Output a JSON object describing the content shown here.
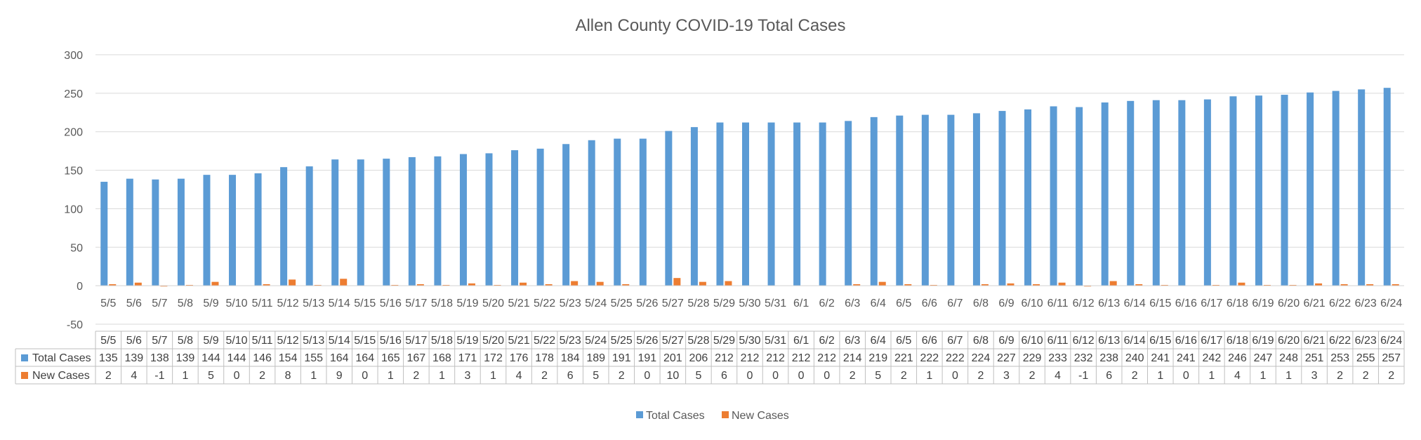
{
  "chart_data": {
    "type": "bar",
    "title": "Allen County COVID-19 Total Cases",
    "xlabel": "",
    "ylabel": "",
    "ylim": [
      -50,
      300
    ],
    "yticks": [
      -50,
      0,
      50,
      100,
      150,
      200,
      250,
      300
    ],
    "grid": true,
    "legend_position": "bottom",
    "has_data_table": true,
    "categories": [
      "5/5",
      "5/6",
      "5/7",
      "5/8",
      "5/9",
      "5/10",
      "5/11",
      "5/12",
      "5/13",
      "5/14",
      "5/15",
      "5/16",
      "5/17",
      "5/18",
      "5/19",
      "5/20",
      "5/21",
      "5/22",
      "5/23",
      "5/24",
      "5/25",
      "5/26",
      "5/27",
      "5/28",
      "5/29",
      "5/30",
      "5/31",
      "6/1",
      "6/2",
      "6/3",
      "6/4",
      "6/5",
      "6/6",
      "6/7",
      "6/8",
      "6/9",
      "6/10",
      "6/11",
      "6/12",
      "6/13",
      "6/14",
      "6/15",
      "6/16",
      "6/17",
      "6/18",
      "6/19",
      "6/20",
      "6/21",
      "6/22",
      "6/23",
      "6/24"
    ],
    "series": [
      {
        "name": "Total Cases",
        "color": "#5b9bd5",
        "values": [
          135,
          139,
          138,
          139,
          144,
          144,
          146,
          154,
          155,
          164,
          164,
          165,
          167,
          168,
          171,
          172,
          176,
          178,
          184,
          189,
          191,
          191,
          201,
          206,
          212,
          212,
          212,
          212,
          212,
          214,
          219,
          221,
          222,
          222,
          224,
          227,
          229,
          233,
          232,
          238,
          240,
          241,
          241,
          242,
          246,
          247,
          248,
          251,
          253,
          255,
          257
        ]
      },
      {
        "name": "New Cases",
        "color": "#ed7d31",
        "values": [
          2,
          4,
          -1,
          1,
          5,
          0,
          2,
          8,
          1,
          9,
          0,
          1,
          2,
          1,
          3,
          1,
          4,
          2,
          6,
          5,
          2,
          0,
          10,
          5,
          6,
          0,
          0,
          0,
          0,
          2,
          5,
          2,
          1,
          0,
          2,
          3,
          2,
          4,
          -1,
          6,
          2,
          1,
          0,
          1,
          4,
          1,
          1,
          3,
          2,
          2,
          2
        ]
      }
    ]
  }
}
